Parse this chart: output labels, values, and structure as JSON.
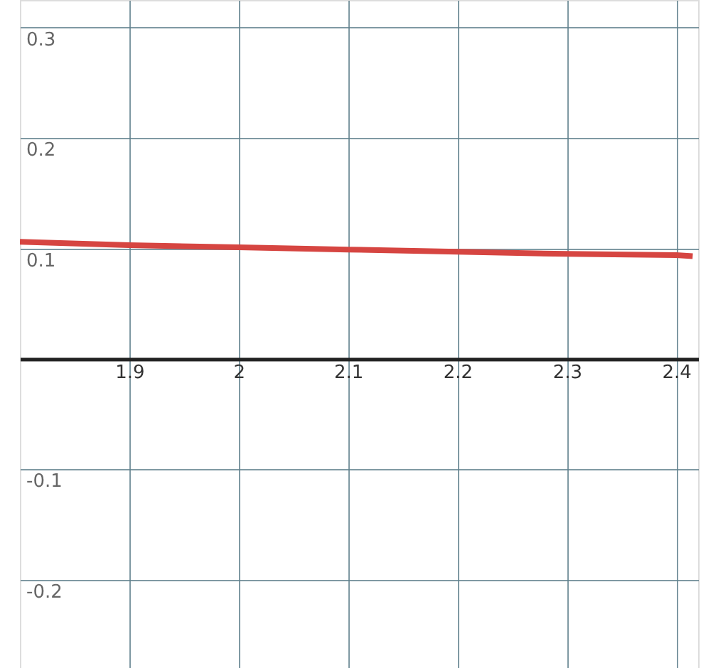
{
  "chart_data": {
    "type": "line",
    "x": [
      1.8,
      1.9,
      2.0,
      2.1,
      2.2,
      2.3,
      2.4,
      2.415
    ],
    "series": [
      {
        "color": "#d64541",
        "values": [
          0.106,
          0.103,
          0.101,
          0.099,
          0.097,
          0.095,
          0.094,
          0.093
        ]
      }
    ],
    "xlim": [
      1.8,
      2.42
    ],
    "ylim": [
      -0.28,
      0.325
    ],
    "xticks": [
      1.9,
      2,
      2.1,
      2.2,
      2.3,
      2.4
    ],
    "yticks": [
      {
        "value": -0.2,
        "label": "-0.2"
      },
      {
        "value": -0.1,
        "label": "-0.1"
      },
      {
        "value": 0,
        "label": null
      },
      0.1,
      0.2,
      0.3
    ],
    "grid": true,
    "marker": "none",
    "line_style": "solid"
  }
}
